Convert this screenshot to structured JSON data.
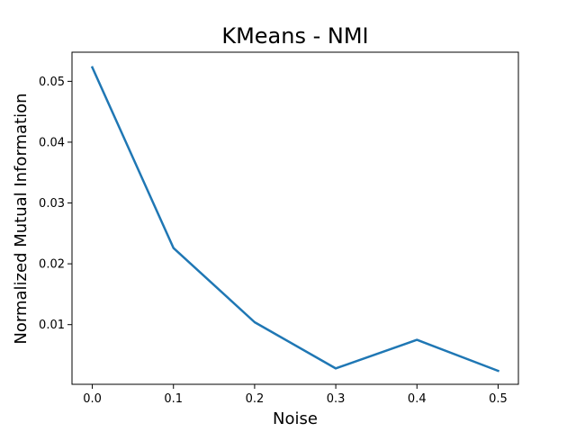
{
  "chart_data": {
    "type": "line",
    "title": "KMeans - NMI",
    "xlabel": "Noise",
    "ylabel": "Normalized Mutual Information",
    "x": [
      0.0,
      0.1,
      0.2,
      0.3,
      0.4,
      0.5
    ],
    "series": [
      {
        "values": [
          0.0523,
          0.0226,
          0.0104,
          0.0028,
          0.0075,
          0.0024
        ],
        "color": "#1f77b4"
      }
    ],
    "xlim": [
      -0.025,
      0.525
    ],
    "ylim": [
      0.00019,
      0.05479
    ],
    "xticks": [
      "0.0",
      "0.1",
      "0.2",
      "0.3",
      "0.4",
      "0.5"
    ],
    "yticks": [
      "0.01",
      "0.02",
      "0.03",
      "0.04",
      "0.05"
    ],
    "grid": false,
    "legend": false
  }
}
